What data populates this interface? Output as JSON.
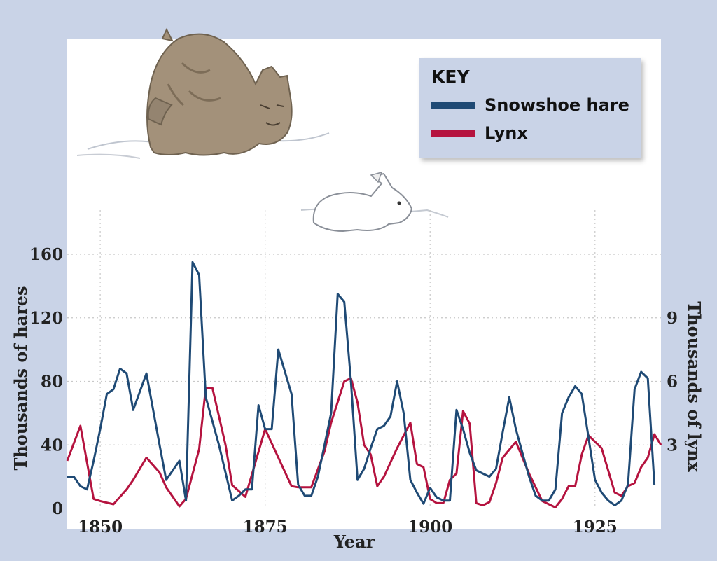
{
  "chart_data": {
    "type": "line",
    "xlabel": "Year",
    "ylabel_left": "Thousands of hares",
    "ylabel_right": "Thousands of lynx",
    "x_ticks": [
      1850,
      1875,
      1900,
      1925
    ],
    "y_left_ticks": [
      0,
      40,
      80,
      120,
      160
    ],
    "y_right_ticks": [
      3,
      6,
      9
    ],
    "xlim": [
      1845,
      1935
    ],
    "ylim_left": [
      0,
      160
    ],
    "ylim_right": [
      0,
      12
    ],
    "grid": true,
    "legend_title": "KEY",
    "legend_position": "top-right",
    "series": [
      {
        "name": "Snowshoe hare",
        "axis": "left",
        "color": "#1f4a75",
        "x": [
          1845,
          1846,
          1847,
          1848,
          1849,
          1850,
          1851,
          1852,
          1853,
          1854,
          1855,
          1857,
          1859,
          1860,
          1862,
          1863,
          1864,
          1865,
          1866,
          1868,
          1870,
          1871,
          1872,
          1873,
          1874,
          1875,
          1876,
          1877,
          1879,
          1880,
          1881,
          1882,
          1883,
          1884,
          1885,
          1886,
          1887,
          1888,
          1889,
          1890,
          1891,
          1892,
          1893,
          1894,
          1895,
          1896,
          1897,
          1898,
          1899,
          1900,
          1901,
          1902,
          1903,
          1904,
          1905,
          1906,
          1907,
          1908,
          1909,
          1910,
          1911,
          1912,
          1913,
          1914,
          1915,
          1916,
          1917,
          1918,
          1919,
          1920,
          1921,
          1922,
          1923,
          1924,
          1925,
          1926,
          1927,
          1928,
          1929,
          1930,
          1931,
          1932,
          1933,
          1934
        ],
        "values": [
          20,
          20,
          14,
          12,
          30,
          50,
          72,
          75,
          88,
          85,
          62,
          85,
          40,
          18,
          30,
          5,
          155,
          147,
          70,
          40,
          5,
          8,
          12,
          12,
          65,
          50,
          50,
          100,
          72,
          15,
          8,
          8,
          20,
          40,
          60,
          135,
          130,
          80,
          18,
          25,
          38,
          50,
          52,
          58,
          80,
          60,
          18,
          10,
          3,
          13,
          7,
          5,
          5,
          62,
          50,
          35,
          24,
          22,
          20,
          25,
          48,
          70,
          50,
          35,
          20,
          8,
          5,
          5,
          12,
          60,
          70,
          77,
          72,
          45,
          18,
          10,
          5,
          2,
          5,
          15,
          75,
          86,
          82,
          15
        ]
      },
      {
        "name": "Lynx",
        "axis": "right",
        "color": "#b5133f",
        "x": [
          1845,
          1847,
          1849,
          1850,
          1852,
          1854,
          1855,
          1857,
          1859,
          1860,
          1862,
          1863,
          1865,
          1866,
          1867,
          1869,
          1870,
          1872,
          1875,
          1879,
          1880,
          1882,
          1884,
          1885,
          1887,
          1888,
          1889,
          1890,
          1891,
          1892,
          1893,
          1895,
          1897,
          1898,
          1899,
          1900,
          1901,
          1902,
          1903,
          1904,
          1905,
          1906,
          1907,
          1908,
          1909,
          1910,
          1911,
          1913,
          1915,
          1917,
          1919,
          1920,
          1921,
          1922,
          1923,
          1924,
          1926,
          1928,
          1929,
          1930,
          1931,
          1932,
          1933,
          1934,
          1935
        ],
        "values": [
          2.25,
          3.9,
          0.45,
          0.35,
          0.2,
          0.9,
          1.35,
          2.4,
          1.7,
          1,
          0.1,
          0.45,
          2.8,
          5.7,
          5.7,
          3,
          1.1,
          0.55,
          3.75,
          1.05,
          1,
          1,
          2.7,
          4.05,
          6.0,
          6.15,
          5,
          3,
          2.55,
          1.05,
          1.5,
          2.85,
          4.05,
          2.1,
          1.95,
          0.45,
          0.25,
          0.25,
          1.35,
          1.65,
          4.6,
          4.0,
          0.25,
          0.15,
          0.3,
          1.2,
          2.4,
          3.15,
          1.65,
          0.35,
          0.05,
          0.45,
          1.05,
          1.05,
          2.55,
          3.45,
          2.85,
          0.75,
          0.6,
          1.05,
          1.2,
          1.95,
          2.4,
          3.5,
          3.0
        ]
      }
    ]
  }
}
